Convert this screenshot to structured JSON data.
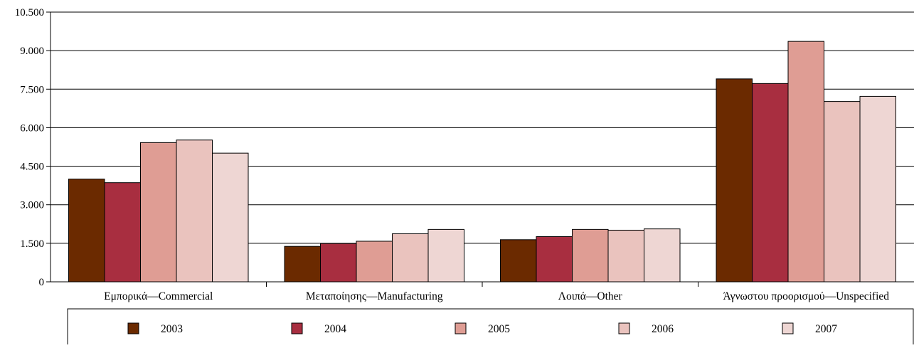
{
  "chart_data": {
    "type": "bar",
    "title": "",
    "xlabel": "",
    "ylabel": "",
    "categories": [
      "Εμπορικά—Commercial",
      "Μεταποίησης—Manufacturing",
      "Λοιπά—Other",
      "Άγνωστου προορισμού—Unspecified"
    ],
    "series": [
      {
        "name": "2003",
        "color": "#6b2a00",
        "values": [
          4000,
          1380,
          1640,
          7900
        ]
      },
      {
        "name": "2004",
        "color": "#a82e40",
        "values": [
          3860,
          1490,
          1760,
          7720
        ]
      },
      {
        "name": "2005",
        "color": "#df9d94",
        "values": [
          5420,
          1580,
          2040,
          9360
        ]
      },
      {
        "name": "2006",
        "color": "#eac3be",
        "values": [
          5520,
          1870,
          2010,
          7020
        ]
      },
      {
        "name": "2007",
        "color": "#eed6d3",
        "values": [
          5010,
          2040,
          2060,
          7220
        ]
      }
    ],
    "ylim": [
      0,
      10500
    ],
    "yticks": [
      0,
      1500,
      3000,
      4500,
      6000,
      7500,
      9000,
      10500
    ],
    "ytick_labels": [
      "0",
      "1.500",
      "3.000",
      "4.500",
      "6.000",
      "7.500",
      "9.000",
      "10.500"
    ],
    "grid": true,
    "legend_position": "bottom"
  }
}
